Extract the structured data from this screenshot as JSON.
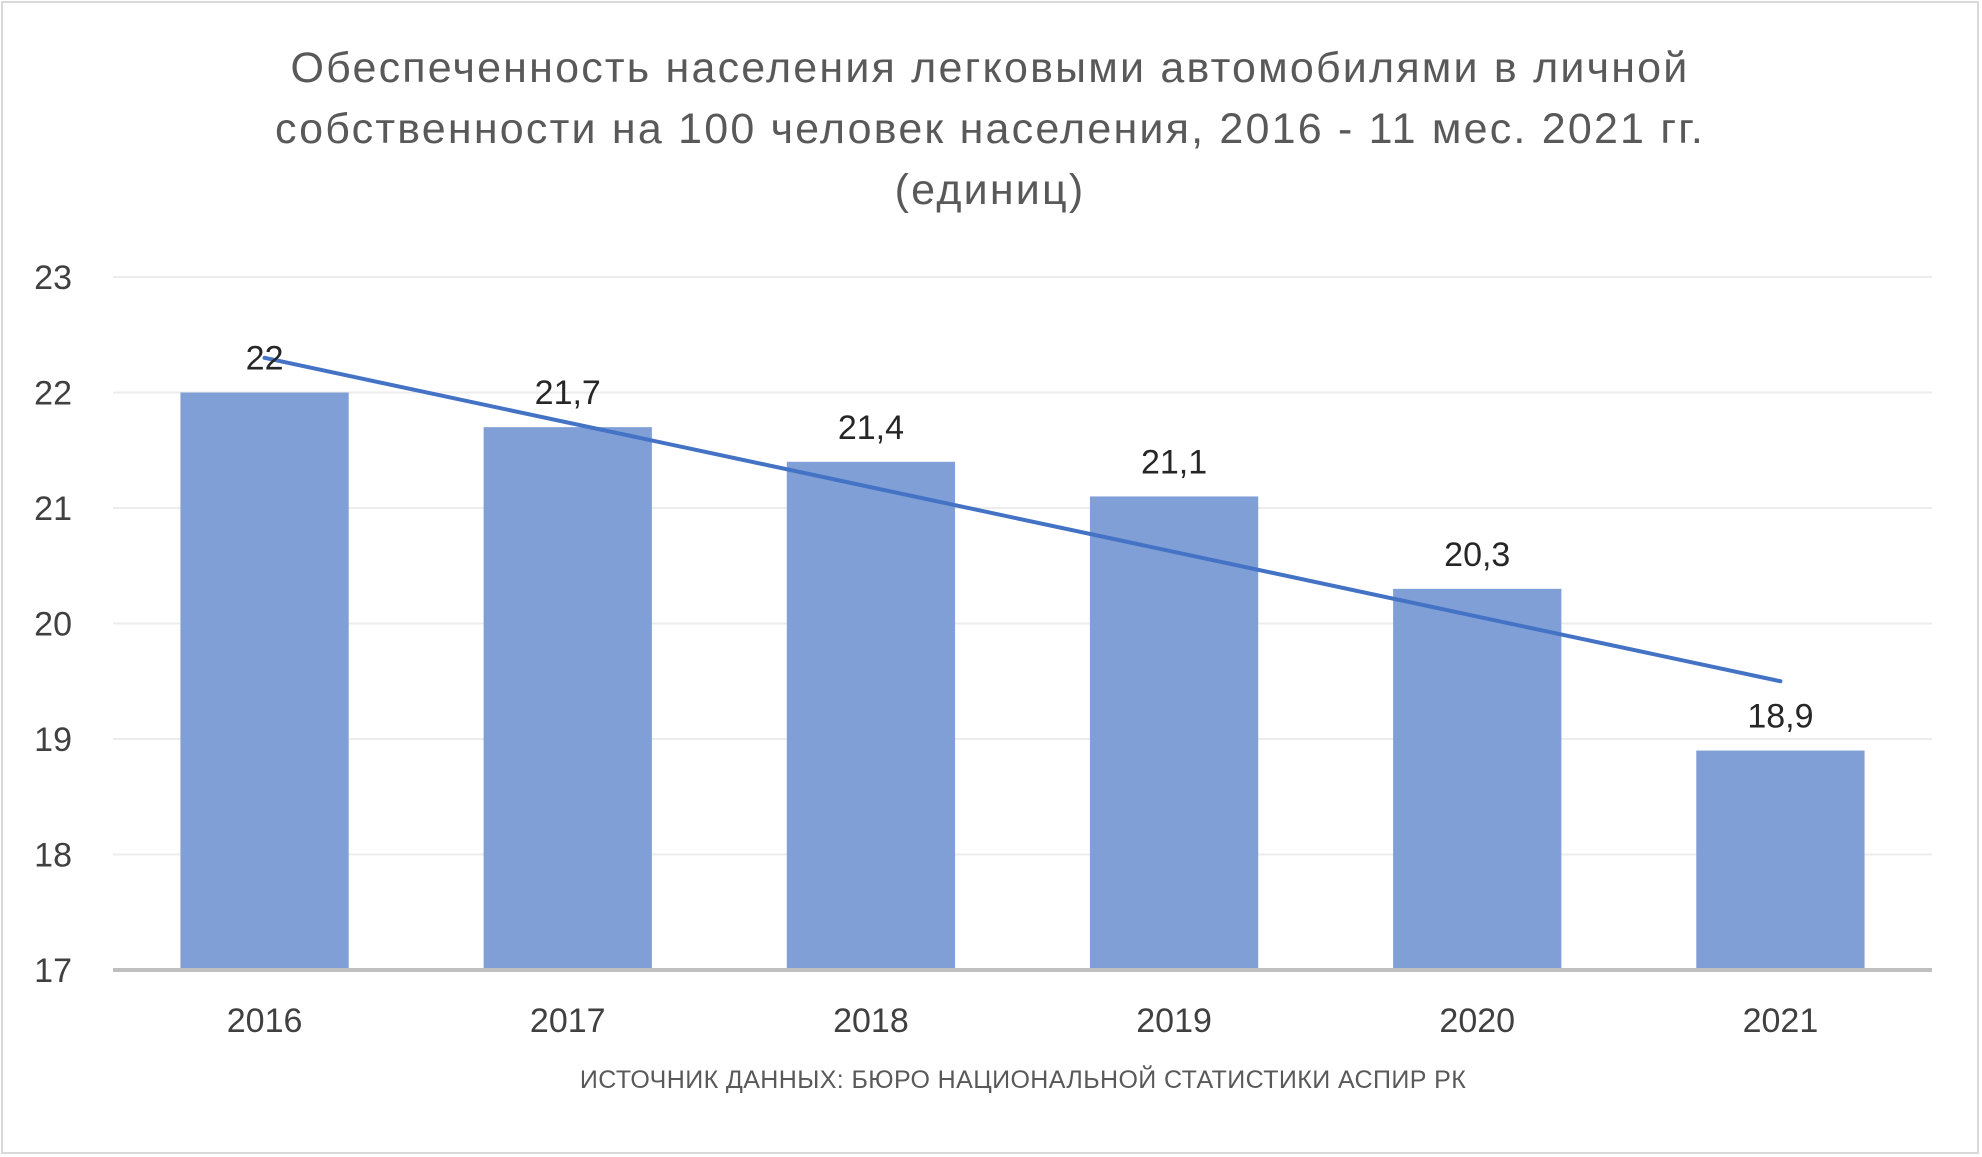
{
  "chart_data": {
    "type": "bar",
    "title": "Обеспеченность населения легковыми автомобилями в личной\nсобственности на 100 человек населения, 2016 - 11 мес. 2021 гг.\n(единиц)",
    "xlabel": "ИСТОЧНИК ДАННЫХ: БЮРО НАЦИОНАЛЬНОЙ СТАТИСТИКИ АСПИР РК",
    "ylabel": "",
    "categories": [
      "2016",
      "2017",
      "2018",
      "2019",
      "2020",
      "2021"
    ],
    "values": [
      22,
      21.7,
      21.4,
      21.1,
      20.3,
      18.9
    ],
    "data_labels": [
      "22",
      "21,7",
      "21,4",
      "21,1",
      "20,3",
      "18,9"
    ],
    "ylim": [
      17,
      23
    ],
    "yticks": [
      17,
      18,
      19,
      20,
      21,
      22,
      23
    ],
    "grid": true,
    "legend": "none",
    "trendline": {
      "type": "linear",
      "start": 22.3,
      "end": 19.5
    },
    "colors": {
      "bar": "#7f9fd6",
      "trend": "#4472c4",
      "grid": "#ececec",
      "axis": "#bfbfbf"
    }
  }
}
